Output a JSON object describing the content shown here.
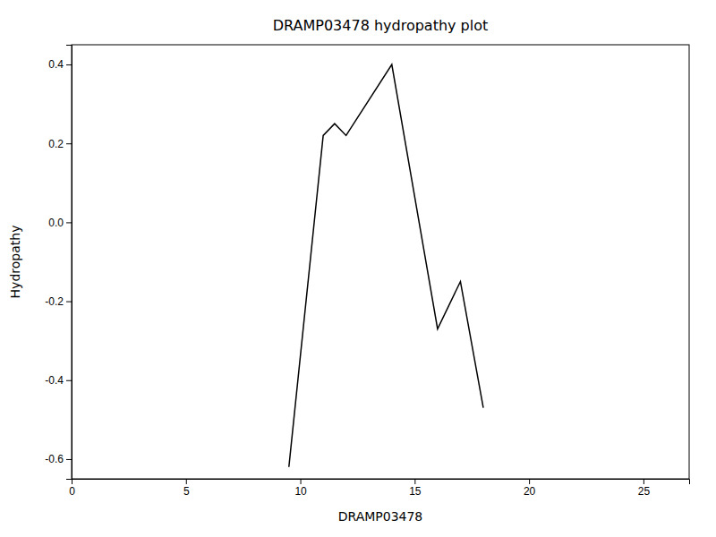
{
  "chart_data": {
    "type": "line",
    "title": "DRAMP03478 hydropathy plot",
    "xlabel": "DRAMP03478",
    "ylabel": "Hydropathy",
    "x": [
      9.5,
      11.0,
      11.5,
      12.0,
      14.0,
      16.0,
      17.0,
      18.0
    ],
    "values": [
      -0.62,
      0.22,
      0.25,
      0.22,
      0.4,
      -0.27,
      -0.15,
      -0.47
    ],
    "color": "#000000",
    "xlim": [
      0,
      27
    ],
    "ylim": [
      -0.65,
      0.45
    ],
    "xticks": [
      0,
      5,
      10,
      15,
      20,
      25
    ],
    "yticks": [
      -0.6,
      -0.4,
      -0.2,
      {
        "value": 0,
        "label": "0.0"
      },
      0.2,
      0.4
    ]
  }
}
